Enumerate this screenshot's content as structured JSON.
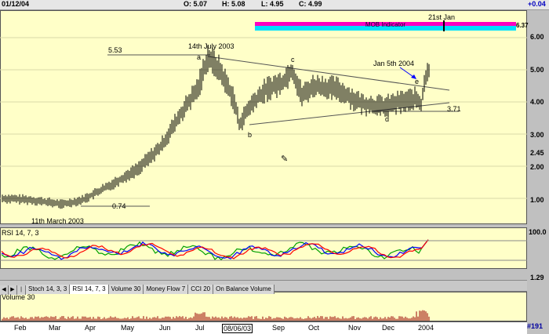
{
  "header": {
    "date": "01/12/04",
    "open": "O: 5.07",
    "high": "H: 5.08",
    "low": "L: 4.95",
    "close": "C: 4.99",
    "change": "+0.04"
  },
  "price_panel": {
    "y_ticks": [
      "6.00",
      "5.00",
      "4.00",
      "3.00",
      "2.45",
      "2.00",
      "1.00"
    ],
    "last_label": "6.37",
    "annotations": {
      "high_value": "5.53",
      "high_date": "14th July 2003",
      "low_value": "0.74",
      "low_date": "11th March 2003",
      "support_value": "3.71",
      "point_a": "a",
      "point_b": "b",
      "point_c": "c",
      "point_d": "d",
      "point_e": "e",
      "breakout_date": "Jan 5th 2004",
      "marker_date": "21st Jan"
    },
    "mob_indicator": "MOB Indicator"
  },
  "rsi_panel": {
    "title": "RSI 14, 7, 3",
    "y_top": "100.0",
    "y_bottom": "1.29"
  },
  "tabs": {
    "items": [
      "Stoch 14, 3, 3",
      "RSI 14, 7, 3",
      "Volume 30",
      "Money Flow 7",
      "CCI 20",
      "On Balance Volume"
    ],
    "active_index": 1
  },
  "volume_panel": {
    "title": "Volume 30"
  },
  "x_axis": {
    "labels": [
      "Feb",
      "Mar",
      "Apr",
      "May",
      "Jun",
      "Jul",
      "08/06/03",
      "Sep",
      "Oct",
      "Nov",
      "Dec",
      "2004"
    ],
    "page_number": "#191"
  },
  "colors": {
    "panel_bg": "#ffffc8",
    "price_bars": "#000000",
    "rsi_red": "#ff0000",
    "rsi_blue": "#0000ff",
    "rsi_green": "#00a000",
    "volume": "#990000",
    "mob_magenta": "#ff00c0",
    "mob_cyan": "#00e0ff"
  }
}
